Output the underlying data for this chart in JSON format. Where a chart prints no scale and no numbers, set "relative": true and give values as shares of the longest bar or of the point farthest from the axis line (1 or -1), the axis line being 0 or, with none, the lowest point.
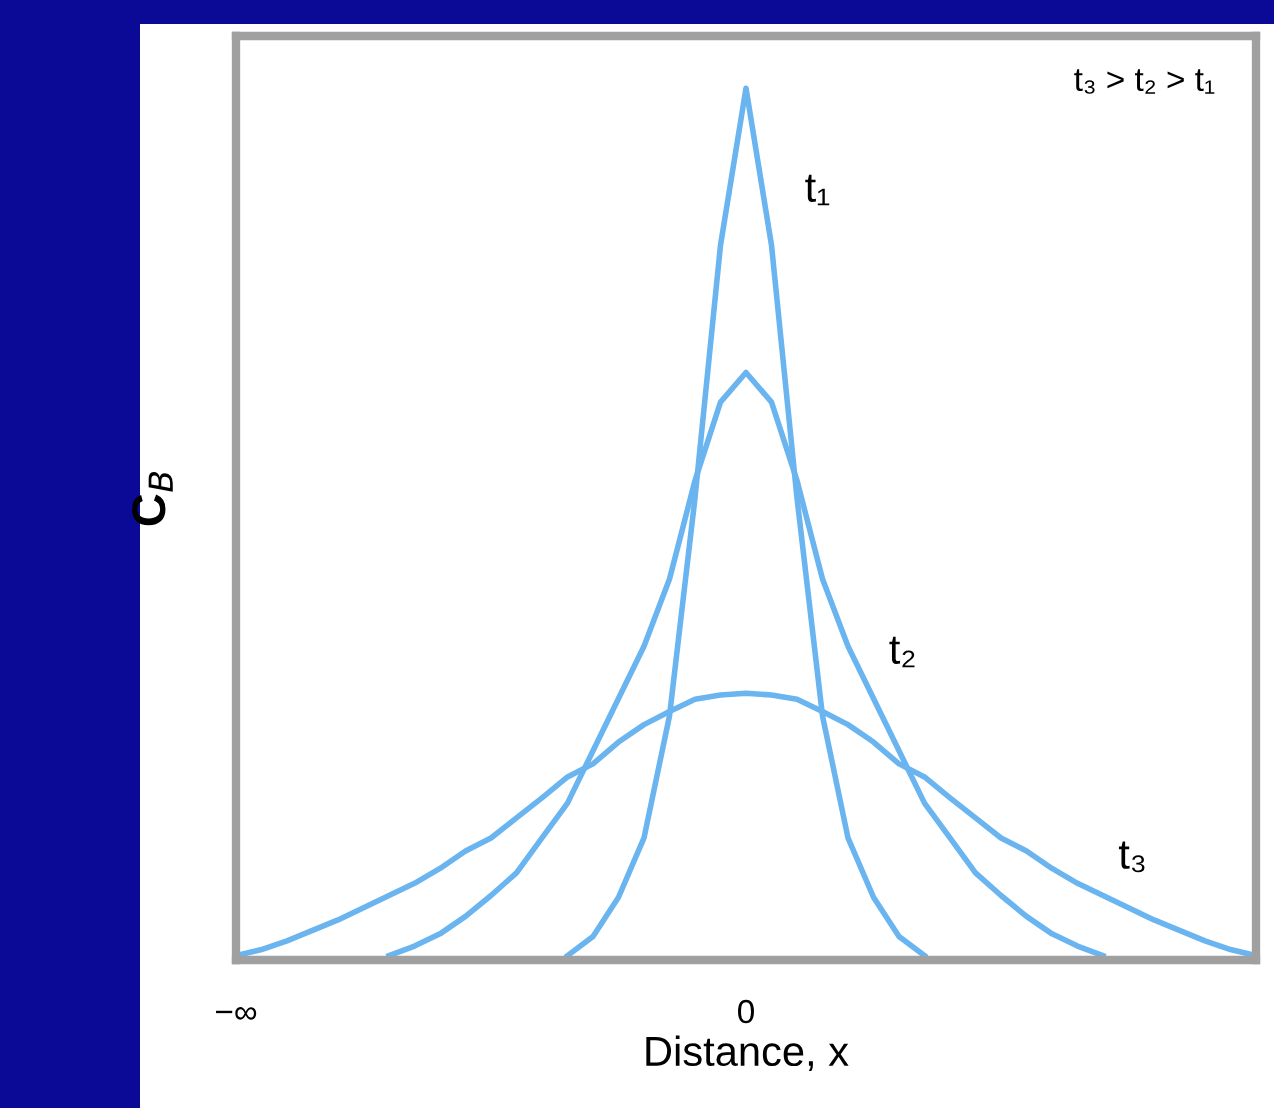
{
  "chart_data": {
    "type": "line",
    "relative": true,
    "xlabel": "Distance, x",
    "ylabel": "C$_{B}$",
    "annotations": [
      "t₃ > t₂ > t₁"
    ],
    "grid": false,
    "marker": "none",
    "line_style": "solid",
    "categories": [
      "−∞",
      null,
      null,
      null,
      null,
      null,
      null,
      null,
      null,
      null,
      null,
      null,
      null,
      null,
      null,
      null,
      null,
      null,
      null,
      null,
      "0",
      null,
      null,
      null,
      null,
      null,
      null,
      null,
      null,
      null,
      null,
      null,
      null,
      null,
      null,
      null,
      null,
      null,
      null,
      null,
      null
    ],
    "series": [
      {
        "name": "t₁",
        "color": "#6ab4f0",
        "values": [
          null,
          null,
          null,
          null,
          null,
          null,
          null,
          null,
          null,
          null,
          null,
          null,
          null,
          0.005,
          0.027,
          0.072,
          0.14,
          0.28,
          0.53,
          0.82,
          1.0,
          0.82,
          0.53,
          0.28,
          0.14,
          0.072,
          0.027,
          0.005,
          null,
          null,
          null,
          null,
          null,
          null,
          null,
          null,
          null,
          null,
          null,
          null,
          null
        ]
      },
      {
        "name": "t₂",
        "color": "#6ab4f0",
        "values": [
          null,
          null,
          null,
          null,
          null,
          null,
          0.005,
          0.016,
          0.03,
          0.05,
          0.074,
          0.1,
          0.14,
          0.18,
          0.24,
          0.3,
          0.36,
          0.437,
          0.55,
          0.64,
          0.674,
          0.64,
          0.55,
          0.437,
          0.36,
          0.3,
          0.24,
          0.18,
          0.14,
          0.1,
          0.074,
          0.05,
          0.03,
          0.016,
          0.005,
          null,
          null,
          null,
          null,
          null,
          null
        ]
      },
      {
        "name": "t₃",
        "color": "#6ab4f0",
        "values": [
          0.005,
          0.012,
          0.022,
          0.034,
          0.046,
          0.06,
          0.074,
          0.088,
          0.105,
          0.125,
          0.14,
          0.163,
          0.186,
          0.21,
          0.225,
          0.25,
          0.27,
          0.285,
          0.299,
          0.304,
          0.306,
          0.304,
          0.299,
          0.285,
          0.27,
          0.25,
          0.225,
          0.21,
          0.186,
          0.163,
          0.14,
          0.125,
          0.105,
          0.088,
          0.074,
          0.06,
          0.046,
          0.034,
          0.022,
          0.012,
          0.005
        ]
      }
    ]
  }
}
